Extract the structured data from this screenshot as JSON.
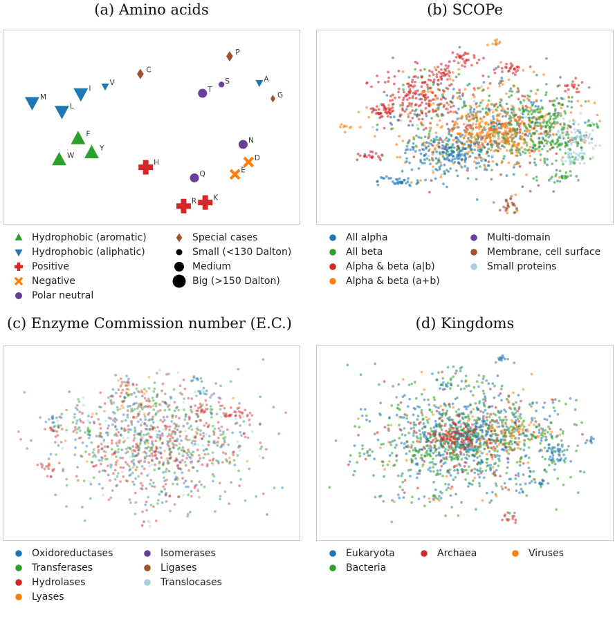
{
  "panels": {
    "a": {
      "title": "(a) Amino acids"
    },
    "b": {
      "title": "(b) SCOPe"
    },
    "c": {
      "title": "(c) Enzyme Commission number (E.C.)"
    },
    "d": {
      "title": "(d) Kingdoms"
    }
  },
  "colors": {
    "blue": "#1f77b4",
    "green": "#2ca02c",
    "red": "#d62728",
    "orange": "#ff7f0e",
    "purple": "#6a3d9a",
    "brown": "#a0522d",
    "lightblue": "#a6cee3",
    "black": "#000000"
  },
  "chart_data": [
    {
      "id": "a",
      "type": "scatter",
      "title": "(a) Amino acids",
      "xlabel": "",
      "ylabel": "",
      "xlim": [
        0,
        100
      ],
      "ylim": [
        0,
        100
      ],
      "grid": false,
      "legend_placement": "below",
      "points": [
        {
          "label": "P",
          "x": 79,
          "y": 90,
          "cls": "special",
          "size": "medium"
        },
        {
          "label": "C",
          "x": 46,
          "y": 80,
          "cls": "special",
          "size": "medium"
        },
        {
          "label": "A",
          "x": 90,
          "y": 75,
          "cls": "aliphatic",
          "size": "small"
        },
        {
          "label": "G",
          "x": 95,
          "y": 66,
          "cls": "special",
          "size": "small"
        },
        {
          "label": "V",
          "x": 33,
          "y": 73,
          "cls": "aliphatic",
          "size": "small"
        },
        {
          "label": "S",
          "x": 76,
          "y": 74,
          "cls": "polar",
          "size": "small"
        },
        {
          "label": "T",
          "x": 69,
          "y": 69,
          "cls": "polar",
          "size": "medium"
        },
        {
          "label": "I",
          "x": 24,
          "y": 69,
          "cls": "aliphatic",
          "size": "big"
        },
        {
          "label": "M",
          "x": 6,
          "y": 64,
          "cls": "aliphatic",
          "size": "big"
        },
        {
          "label": "L",
          "x": 17,
          "y": 59,
          "cls": "aliphatic",
          "size": "big"
        },
        {
          "label": "F",
          "x": 23,
          "y": 43,
          "cls": "aromatic",
          "size": "big"
        },
        {
          "label": "Y",
          "x": 28,
          "y": 35,
          "cls": "aromatic",
          "size": "big"
        },
        {
          "label": "W",
          "x": 16,
          "y": 31,
          "cls": "aromatic",
          "size": "big"
        },
        {
          "label": "N",
          "x": 84,
          "y": 40,
          "cls": "polar",
          "size": "medium"
        },
        {
          "label": "H",
          "x": 48,
          "y": 27,
          "cls": "positive",
          "size": "big"
        },
        {
          "label": "D",
          "x": 86,
          "y": 30,
          "cls": "negative",
          "size": "medium"
        },
        {
          "label": "E",
          "x": 81,
          "y": 23,
          "cls": "negative",
          "size": "medium"
        },
        {
          "label": "Q",
          "x": 66,
          "y": 21,
          "cls": "polar",
          "size": "medium"
        },
        {
          "label": "K",
          "x": 70,
          "y": 7,
          "cls": "positive",
          "size": "big"
        },
        {
          "label": "R",
          "x": 62,
          "y": 5,
          "cls": "positive",
          "size": "big"
        }
      ],
      "legend": [
        {
          "label": "Hydrophobic (aromatic)",
          "marker": "tri-up",
          "color": "green"
        },
        {
          "label": "Hydrophobic (aliphatic)",
          "marker": "tri-down",
          "color": "blue"
        },
        {
          "label": "Positive",
          "marker": "plus",
          "color": "red"
        },
        {
          "label": "Negative",
          "marker": "x",
          "color": "orange"
        },
        {
          "label": "Polar neutral",
          "marker": "circle",
          "color": "purple"
        },
        {
          "label": "Special cases",
          "marker": "diamond",
          "color": "brown"
        },
        {
          "label": "Small (<130 Dalton)",
          "marker": "circle-s",
          "color": "black"
        },
        {
          "label": "Medium",
          "marker": "circle-m",
          "color": "black"
        },
        {
          "label": "Big (>150 Dalton)",
          "marker": "circle-l",
          "color": "black"
        }
      ]
    },
    {
      "id": "b",
      "type": "scatter",
      "title": "(b) SCOPe",
      "xlabel": "",
      "ylabel": "",
      "xlim": [
        0,
        100
      ],
      "ylim": [
        0,
        100
      ],
      "grid": false,
      "legend_placement": "below",
      "series": [
        {
          "name": "All alpha",
          "color": "blue"
        },
        {
          "name": "All beta",
          "color": "green"
        },
        {
          "name": "Alpha & beta (a|b)",
          "color": "red"
        },
        {
          "name": "Alpha & beta (a+b)",
          "color": "orange"
        },
        {
          "name": "Multi-domain",
          "color": "purple"
        },
        {
          "name": "Membrane, cell surface",
          "color": "brown"
        },
        {
          "name": "Small proteins",
          "color": "lightblue"
        }
      ],
      "clusters": [
        {
          "x": 60,
          "y": 50,
          "sx": 18,
          "sy": 14,
          "n": 700,
          "mix": [
            0.22,
            0.28,
            0.1,
            0.32,
            0.03,
            0.02,
            0.03
          ]
        },
        {
          "x": 45,
          "y": 35,
          "sx": 8,
          "sy": 6,
          "n": 220,
          "mix": [
            0.85,
            0.05,
            0.02,
            0.06,
            0.0,
            0.0,
            0.02
          ]
        },
        {
          "x": 36,
          "y": 68,
          "sx": 7,
          "sy": 8,
          "n": 180,
          "mix": [
            0.05,
            0.08,
            0.8,
            0.07,
            0.0,
            0.0,
            0.0
          ]
        },
        {
          "x": 76,
          "y": 50,
          "sx": 8,
          "sy": 9,
          "n": 220,
          "mix": [
            0.05,
            0.8,
            0.03,
            0.1,
            0.0,
            0.0,
            0.02
          ]
        },
        {
          "x": 62,
          "y": 48,
          "sx": 7,
          "sy": 6,
          "n": 240,
          "mix": [
            0.05,
            0.08,
            0.05,
            0.8,
            0.0,
            0.0,
            0.02
          ]
        },
        {
          "x": 90,
          "y": 45,
          "sx": 4,
          "sy": 5,
          "n": 70,
          "mix": [
            0.0,
            0.1,
            0.0,
            0.05,
            0.0,
            0.0,
            0.85
          ]
        },
        {
          "x": 90,
          "y": 32,
          "sx": 3,
          "sy": 2,
          "n": 40,
          "mix": [
            0.0,
            0.1,
            0.0,
            0.0,
            0.0,
            0.0,
            0.9
          ]
        },
        {
          "x": 22,
          "y": 58,
          "sx": 3,
          "sy": 2,
          "n": 40,
          "mix": [
            0.05,
            0.0,
            0.9,
            0.05,
            0.0,
            0.0,
            0.0
          ]
        },
        {
          "x": 16,
          "y": 34,
          "sx": 2,
          "sy": 1.5,
          "n": 20,
          "mix": [
            0.05,
            0.0,
            0.95,
            0.0,
            0.0,
            0.0,
            0.0
          ]
        },
        {
          "x": 27,
          "y": 20,
          "sx": 4,
          "sy": 1.5,
          "n": 35,
          "mix": [
            1.0,
            0,
            0,
            0,
            0,
            0,
            0
          ]
        },
        {
          "x": 66,
          "y": 6,
          "sx": 1.5,
          "sy": 3,
          "n": 30,
          "mix": [
            0,
            0,
            0,
            0.1,
            0,
            0.9,
            0
          ]
        },
        {
          "x": 50,
          "y": 88,
          "sx": 2.5,
          "sy": 2,
          "n": 30,
          "mix": [
            0.0,
            0.0,
            1.0,
            0.0,
            0.0,
            0.0,
            0.0
          ]
        },
        {
          "x": 43,
          "y": 80,
          "sx": 1.5,
          "sy": 2,
          "n": 20,
          "mix": [
            0.0,
            0.0,
            1.0,
            0.0,
            0.0,
            0.0,
            0.0
          ]
        },
        {
          "x": 66,
          "y": 82,
          "sx": 3,
          "sy": 1.5,
          "n": 25,
          "mix": [
            0.0,
            0.0,
            1.0,
            0.0,
            0.0,
            0.0,
            0.0
          ]
        },
        {
          "x": 88,
          "y": 72,
          "sx": 2,
          "sy": 1.5,
          "n": 15,
          "mix": [
            0.0,
            0.0,
            1.0,
            0.0,
            0.0,
            0.0,
            0.0
          ]
        },
        {
          "x": 82,
          "y": 40,
          "sx": 3,
          "sy": 2,
          "n": 20,
          "mix": [
            0.0,
            1.0,
            0.0,
            0.0,
            0.0,
            0.0,
            0.0
          ]
        },
        {
          "x": 85,
          "y": 22,
          "sx": 2.5,
          "sy": 1.5,
          "n": 18,
          "mix": [
            0.0,
            1.0,
            0.0,
            0.0,
            0.0,
            0.0,
            0.0
          ]
        },
        {
          "x": 96,
          "y": 51,
          "sx": 1.5,
          "sy": 1,
          "n": 10,
          "mix": [
            0.0,
            1.0,
            0.0,
            0.0,
            0.0,
            0.0,
            0.0
          ]
        },
        {
          "x": 61,
          "y": 96,
          "sx": 1.2,
          "sy": 1,
          "n": 10,
          "mix": [
            0.0,
            0.0,
            0.0,
            1.0,
            0.0,
            0.0,
            0.0
          ]
        },
        {
          "x": 8,
          "y": 50,
          "sx": 1.5,
          "sy": 1.5,
          "n": 8,
          "mix": [
            0.0,
            0.0,
            0.0,
            1.0,
            0.0,
            0.0,
            0.0
          ]
        }
      ]
    },
    {
      "id": "c",
      "type": "scatter",
      "title": "(c) Enzyme Commission number (E.C.)",
      "xlabel": "",
      "ylabel": "",
      "xlim": [
        0,
        100
      ],
      "ylim": [
        0,
        100
      ],
      "grid": false,
      "legend_placement": "below",
      "series": [
        {
          "name": "Oxidoreductases",
          "color": "blue"
        },
        {
          "name": "Transferases",
          "color": "green"
        },
        {
          "name": "Hydrolases",
          "color": "red"
        },
        {
          "name": "Lyases",
          "color": "orange"
        },
        {
          "name": "Isomerases",
          "color": "purple"
        },
        {
          "name": "Ligases",
          "color": "brown"
        },
        {
          "name": "Translocases",
          "color": "lightblue"
        }
      ],
      "clusters": [
        {
          "x": 52,
          "y": 50,
          "sx": 17,
          "sy": 15,
          "n": 900,
          "mix": [
            0.2,
            0.25,
            0.28,
            0.05,
            0.05,
            0.07,
            0.1
          ]
        },
        {
          "x": 44,
          "y": 72,
          "sx": 6,
          "sy": 5,
          "n": 80,
          "mix": [
            0.2,
            0.25,
            0.2,
            0.2,
            0.05,
            0.05,
            0.05
          ]
        },
        {
          "x": 79,
          "y": 66,
          "sx": 3,
          "sy": 2,
          "n": 30,
          "mix": [
            0.0,
            0.0,
            1.0,
            0.0,
            0.0,
            0.0,
            0.0
          ]
        },
        {
          "x": 67,
          "y": 70,
          "sx": 2,
          "sy": 2,
          "n": 15,
          "mix": [
            0.0,
            0.0,
            1.0,
            0.0,
            0.0,
            0.0,
            0.0
          ]
        },
        {
          "x": 16,
          "y": 57,
          "sx": 2,
          "sy": 2,
          "n": 15,
          "mix": [
            0.1,
            0.1,
            0.8,
            0.0,
            0.0,
            0.0,
            0.0
          ]
        },
        {
          "x": 14,
          "y": 36,
          "sx": 1.5,
          "sy": 1.5,
          "n": 12,
          "mix": [
            0.0,
            0.0,
            1.0,
            0.0,
            0.0,
            0.0,
            0.0
          ]
        },
        {
          "x": 26,
          "y": 56,
          "sx": 2,
          "sy": 1.5,
          "n": 12,
          "mix": [
            0.0,
            1.0,
            0.0,
            0.0,
            0.0,
            0.0,
            0.0
          ]
        },
        {
          "x": 15,
          "y": 62,
          "sx": 1.5,
          "sy": 1.2,
          "n": 10,
          "mix": [
            1.0,
            0.0,
            0.0,
            0.0,
            0.0,
            0.0,
            0.0
          ]
        },
        {
          "x": 42,
          "y": 83,
          "sx": 1.5,
          "sy": 1.5,
          "n": 12,
          "mix": [
            0.3,
            0.0,
            0.2,
            0.5,
            0.0,
            0.0,
            0.0
          ]
        },
        {
          "x": 66,
          "y": 85,
          "sx": 1.2,
          "sy": 1,
          "n": 8,
          "mix": [
            1.0,
            0.0,
            0.0,
            0.0,
            0.0,
            0.0,
            0.0
          ]
        },
        {
          "x": 68,
          "y": 78,
          "sx": 1.5,
          "sy": 1,
          "n": 10,
          "mix": [
            0.6,
            0.0,
            0.0,
            0.0,
            0.0,
            0.0,
            0.4
          ]
        },
        {
          "x": 48,
          "y": 6,
          "sx": 1,
          "sy": 2,
          "n": 8,
          "mix": [
            0.0,
            0.0,
            0.3,
            0.0,
            0.0,
            0.0,
            0.7
          ]
        }
      ]
    },
    {
      "id": "d",
      "type": "scatter",
      "title": "(d) Kingdoms",
      "xlabel": "",
      "ylabel": "",
      "xlim": [
        0,
        100
      ],
      "ylim": [
        0,
        100
      ],
      "grid": false,
      "legend_placement": "below",
      "series": [
        {
          "name": "Eukaryota",
          "color": "blue"
        },
        {
          "name": "Bacteria",
          "color": "green"
        },
        {
          "name": "Archaea",
          "color": "red"
        },
        {
          "name": "Viruses",
          "color": "orange"
        }
      ],
      "clusters": [
        {
          "x": 50,
          "y": 52,
          "sx": 18,
          "sy": 17,
          "n": 900,
          "mix": [
            0.35,
            0.5,
            0.1,
            0.05
          ]
        },
        {
          "x": 48,
          "y": 55,
          "sx": 9,
          "sy": 8,
          "n": 300,
          "mix": [
            0.45,
            0.35,
            0.15,
            0.05
          ]
        },
        {
          "x": 48,
          "y": 52,
          "sx": 5,
          "sy": 4,
          "n": 120,
          "mix": [
            0.2,
            0.2,
            0.55,
            0.05
          ]
        },
        {
          "x": 68,
          "y": 55,
          "sx": 6,
          "sy": 5,
          "n": 110,
          "mix": [
            0.2,
            0.25,
            0.05,
            0.5
          ]
        },
        {
          "x": 82,
          "y": 45,
          "sx": 3,
          "sy": 4,
          "n": 50,
          "mix": [
            0.9,
            0.1,
            0.0,
            0.0
          ]
        },
        {
          "x": 63,
          "y": 97,
          "sx": 1.2,
          "sy": 1,
          "n": 10,
          "mix": [
            1.0,
            0.0,
            0.0,
            0.0
          ]
        },
        {
          "x": 66,
          "y": 9,
          "sx": 1.5,
          "sy": 1.5,
          "n": 12,
          "mix": [
            0.0,
            0.0,
            1.0,
            0.0
          ]
        },
        {
          "x": 76,
          "y": 28,
          "sx": 2,
          "sy": 1.5,
          "n": 15,
          "mix": [
            1.0,
            0.0,
            0.0,
            0.0
          ]
        },
        {
          "x": 43,
          "y": 82,
          "sx": 2,
          "sy": 1.5,
          "n": 15,
          "mix": [
            0.6,
            0.4,
            0.0,
            0.0
          ]
        },
        {
          "x": 95,
          "y": 52,
          "sx": 1,
          "sy": 1,
          "n": 8,
          "mix": [
            1.0,
            0.0,
            0.0,
            0.0
          ]
        },
        {
          "x": 40,
          "y": 20,
          "sx": 2,
          "sy": 1.5,
          "n": 12,
          "mix": [
            0.2,
            0.6,
            0.0,
            0.2
          ]
        },
        {
          "x": 15,
          "y": 45,
          "sx": 2,
          "sy": 2,
          "n": 10,
          "mix": [
            0.5,
            0.5,
            0.0,
            0.0
          ]
        }
      ]
    }
  ]
}
